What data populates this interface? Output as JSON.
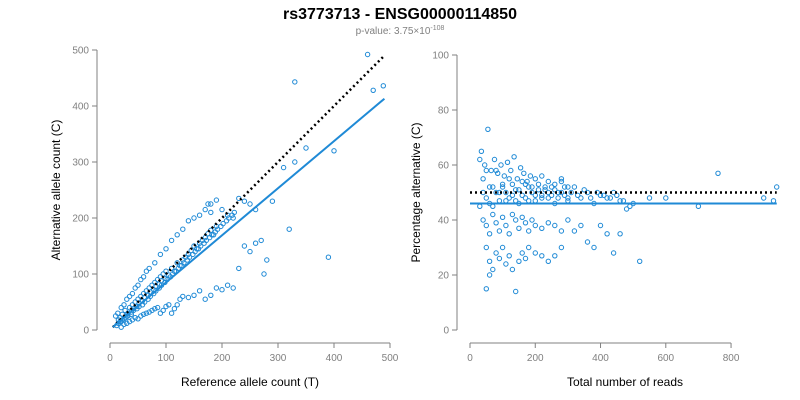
{
  "title": "rs3773713 - ENSG00000114850",
  "subtitle": {
    "prefix": "p-value: 3.75×10",
    "exponent": "-108"
  },
  "colors": {
    "points": "#1f8ad6",
    "fit_line": "#1f8ad6",
    "reference_line": "#000000",
    "axis": "#808080"
  },
  "chart_data": [
    {
      "type": "scatter",
      "xlabel": "Reference allele count (T)",
      "ylabel": "Alternative allele count (C)",
      "xlim": [
        0,
        500
      ],
      "ylim": [
        0,
        500
      ],
      "xticks": [
        0,
        100,
        200,
        300,
        400,
        500
      ],
      "yticks": [
        0,
        100,
        200,
        300,
        400,
        500
      ],
      "regression_line": [
        [
          5,
          5
        ],
        [
          490,
          413
        ]
      ],
      "reference_line": [
        [
          5,
          5
        ],
        [
          490,
          490
        ]
      ],
      "points": [
        [
          12,
          8
        ],
        [
          15,
          18
        ],
        [
          18,
          22
        ],
        [
          20,
          15
        ],
        [
          22,
          28
        ],
        [
          25,
          20
        ],
        [
          27,
          35
        ],
        [
          30,
          25
        ],
        [
          32,
          30
        ],
        [
          35,
          40
        ],
        [
          38,
          32
        ],
        [
          40,
          45
        ],
        [
          42,
          38
        ],
        [
          45,
          50
        ],
        [
          48,
          42
        ],
        [
          50,
          55
        ],
        [
          52,
          48
        ],
        [
          55,
          60
        ],
        [
          58,
          52
        ],
        [
          60,
          65
        ],
        [
          62,
          58
        ],
        [
          65,
          70
        ],
        [
          68,
          62
        ],
        [
          70,
          75
        ],
        [
          72,
          68
        ],
        [
          75,
          80
        ],
        [
          78,
          72
        ],
        [
          80,
          85
        ],
        [
          82,
          78
        ],
        [
          85,
          90
        ],
        [
          88,
          82
        ],
        [
          90,
          95
        ],
        [
          92,
          88
        ],
        [
          95,
          100
        ],
        [
          98,
          92
        ],
        [
          100,
          105
        ],
        [
          105,
          98
        ],
        [
          110,
          110
        ],
        [
          115,
          105
        ],
        [
          120,
          120
        ],
        [
          125,
          115
        ],
        [
          130,
          125
        ],
        [
          135,
          130
        ],
        [
          140,
          135
        ],
        [
          145,
          142
        ],
        [
          150,
          150
        ],
        [
          155,
          145
        ],
        [
          160,
          155
        ],
        [
          165,
          160
        ],
        [
          170,
          165
        ],
        [
          175,
          172
        ],
        [
          180,
          178
        ],
        [
          185,
          170
        ],
        [
          190,
          185
        ],
        [
          10,
          25
        ],
        [
          14,
          30
        ],
        [
          20,
          40
        ],
        [
          25,
          45
        ],
        [
          30,
          55
        ],
        [
          35,
          60
        ],
        [
          40,
          65
        ],
        [
          45,
          75
        ],
        [
          50,
          80
        ],
        [
          55,
          90
        ],
        [
          60,
          95
        ],
        [
          65,
          105
        ],
        [
          70,
          110
        ],
        [
          80,
          120
        ],
        [
          90,
          135
        ],
        [
          100,
          145
        ],
        [
          110,
          160
        ],
        [
          120,
          170
        ],
        [
          130,
          180
        ],
        [
          140,
          195
        ],
        [
          150,
          200
        ],
        [
          160,
          205
        ],
        [
          170,
          215
        ],
        [
          180,
          225
        ],
        [
          190,
          232
        ],
        [
          200,
          215
        ],
        [
          210,
          205
        ],
        [
          220,
          200
        ],
        [
          230,
          235
        ],
        [
          240,
          230
        ],
        [
          250,
          225
        ],
        [
          260,
          215
        ],
        [
          175,
          225
        ],
        [
          180,
          210
        ],
        [
          20,
          5
        ],
        [
          25,
          10
        ],
        [
          30,
          12
        ],
        [
          35,
          15
        ],
        [
          40,
          18
        ],
        [
          45,
          22
        ],
        [
          50,
          20
        ],
        [
          55,
          25
        ],
        [
          60,
          28
        ],
        [
          65,
          30
        ],
        [
          70,
          32
        ],
        [
          75,
          35
        ],
        [
          80,
          38
        ],
        [
          85,
          40
        ],
        [
          90,
          30
        ],
        [
          95,
          35
        ],
        [
          100,
          42
        ],
        [
          105,
          45
        ],
        [
          110,
          30
        ],
        [
          115,
          38
        ],
        [
          120,
          45
        ],
        [
          125,
          55
        ],
        [
          130,
          60
        ],
        [
          140,
          58
        ],
        [
          150,
          62
        ],
        [
          160,
          70
        ],
        [
          170,
          55
        ],
        [
          180,
          62
        ],
        [
          190,
          75
        ],
        [
          200,
          72
        ],
        [
          210,
          80
        ],
        [
          220,
          75
        ],
        [
          230,
          110
        ],
        [
          240,
          150
        ],
        [
          250,
          140
        ],
        [
          260,
          155
        ],
        [
          270,
          160
        ],
        [
          275,
          100
        ],
        [
          280,
          125
        ],
        [
          290,
          230
        ],
        [
          310,
          290
        ],
        [
          320,
          180
        ],
        [
          330,
          300
        ],
        [
          350,
          325
        ],
        [
          390,
          130
        ],
        [
          400,
          320
        ],
        [
          330,
          443
        ],
        [
          460,
          492
        ],
        [
          470,
          428
        ],
        [
          488,
          436
        ],
        [
          15,
          12
        ],
        [
          18,
          15
        ],
        [
          22,
          18
        ],
        [
          28,
          22
        ],
        [
          32,
          25
        ],
        [
          38,
          28
        ],
        [
          42,
          35
        ],
        [
          48,
          38
        ],
        [
          52,
          42
        ],
        [
          58,
          45
        ],
        [
          62,
          50
        ],
        [
          68,
          55
        ],
        [
          72,
          60
        ],
        [
          78,
          65
        ],
        [
          82,
          70
        ],
        [
          88,
          75
        ],
        [
          92,
          80
        ],
        [
          98,
          85
        ],
        [
          102,
          90
        ],
        [
          108,
          95
        ],
        [
          112,
          100
        ],
        [
          118,
          105
        ],
        [
          122,
          110
        ],
        [
          128,
          115
        ],
        [
          132,
          120
        ],
        [
          138,
          125
        ],
        [
          142,
          130
        ],
        [
          148,
          135
        ],
        [
          152,
          140
        ],
        [
          158,
          145
        ],
        [
          162,
          150
        ],
        [
          168,
          155
        ],
        [
          172,
          160
        ],
        [
          178,
          165
        ],
        [
          182,
          170
        ],
        [
          188,
          175
        ],
        [
          192,
          180
        ],
        [
          198,
          185
        ],
        [
          202,
          190
        ],
        [
          208,
          195
        ],
        [
          212,
          200
        ],
        [
          218,
          205
        ],
        [
          222,
          210
        ]
      ]
    },
    {
      "type": "scatter",
      "xlabel": "Total number of reads",
      "ylabel": "Percentage alternative (C)",
      "xlim": [
        0,
        950
      ],
      "ylim": [
        0,
        100
      ],
      "xticks": [
        0,
        200,
        400,
        600,
        800
      ],
      "yticks": [
        0,
        20,
        40,
        60,
        80,
        100
      ],
      "regression_line": [
        [
          0,
          46
        ],
        [
          940,
          46
        ]
      ],
      "reference_line": [
        [
          0,
          50
        ],
        [
          940,
          50
        ]
      ],
      "points": [
        [
          30,
          62
        ],
        [
          40,
          55
        ],
        [
          50,
          48
        ],
        [
          60,
          52
        ],
        [
          70,
          45
        ],
        [
          80,
          58
        ],
        [
          90,
          50
        ],
        [
          100,
          53
        ],
        [
          110,
          47
        ],
        [
          120,
          55
        ],
        [
          130,
          49
        ],
        [
          140,
          51
        ],
        [
          150,
          46
        ],
        [
          160,
          54
        ],
        [
          170,
          48
        ],
        [
          180,
          52
        ],
        [
          190,
          50
        ],
        [
          200,
          47
        ],
        [
          210,
          53
        ],
        [
          220,
          49
        ],
        [
          230,
          51
        ],
        [
          240,
          48
        ],
        [
          250,
          52
        ],
        [
          260,
          46
        ],
        [
          270,
          50
        ],
        [
          280,
          54
        ],
        [
          290,
          49
        ],
        [
          300,
          47
        ],
        [
          320,
          52
        ],
        [
          340,
          48
        ],
        [
          360,
          50
        ],
        [
          380,
          46
        ],
        [
          400,
          49
        ],
        [
          420,
          48
        ],
        [
          440,
          50
        ],
        [
          460,
          47
        ],
        [
          480,
          44
        ],
        [
          500,
          46
        ],
        [
          520,
          25
        ],
        [
          550,
          48
        ],
        [
          600,
          48
        ],
        [
          700,
          45
        ],
        [
          760,
          57
        ],
        [
          900,
          48
        ],
        [
          930,
          47
        ],
        [
          940,
          52
        ],
        [
          35,
          65
        ],
        [
          45,
          60
        ],
        [
          55,
          73
        ],
        [
          65,
          58
        ],
        [
          75,
          62
        ],
        [
          85,
          57
        ],
        [
          95,
          60
        ],
        [
          105,
          56
        ],
        [
          115,
          61
        ],
        [
          125,
          58
        ],
        [
          135,
          63
        ],
        [
          145,
          55
        ],
        [
          155,
          59
        ],
        [
          165,
          57
        ],
        [
          175,
          54
        ],
        [
          185,
          56
        ],
        [
          200,
          55
        ],
        [
          220,
          56
        ],
        [
          240,
          54
        ],
        [
          260,
          53
        ],
        [
          280,
          55
        ],
        [
          300,
          52
        ],
        [
          40,
          40
        ],
        [
          50,
          38
        ],
        [
          60,
          35
        ],
        [
          70,
          42
        ],
        [
          80,
          39
        ],
        [
          90,
          36
        ],
        [
          100,
          41
        ],
        [
          110,
          38
        ],
        [
          120,
          35
        ],
        [
          130,
          42
        ],
        [
          140,
          40
        ],
        [
          150,
          37
        ],
        [
          160,
          41
        ],
        [
          170,
          39
        ],
        [
          180,
          36
        ],
        [
          190,
          40
        ],
        [
          200,
          38
        ],
        [
          220,
          37
        ],
        [
          240,
          39
        ],
        [
          260,
          38
        ],
        [
          280,
          36
        ],
        [
          300,
          40
        ],
        [
          320,
          36
        ],
        [
          340,
          38
        ],
        [
          360,
          32
        ],
        [
          380,
          30
        ],
        [
          400,
          38
        ],
        [
          420,
          35
        ],
        [
          440,
          28
        ],
        [
          460,
          35
        ],
        [
          50,
          30
        ],
        [
          60,
          25
        ],
        [
          70,
          22
        ],
        [
          80,
          28
        ],
        [
          90,
          26
        ],
        [
          100,
          30
        ],
        [
          110,
          24
        ],
        [
          120,
          27
        ],
        [
          130,
          22
        ],
        [
          140,
          14
        ],
        [
          150,
          25
        ],
        [
          160,
          28
        ],
        [
          170,
          26
        ],
        [
          180,
          30
        ],
        [
          200,
          28
        ],
        [
          220,
          27
        ],
        [
          240,
          25
        ],
        [
          260,
          27
        ],
        [
          280,
          30
        ],
        [
          50,
          15
        ],
        [
          60,
          20
        ],
        [
          30,
          45
        ],
        [
          40,
          50
        ],
        [
          50,
          58
        ],
        [
          60,
          46
        ],
        [
          70,
          52
        ],
        [
          80,
          50
        ],
        [
          90,
          47
        ],
        [
          100,
          52
        ],
        [
          110,
          50
        ],
        [
          120,
          48
        ],
        [
          130,
          53
        ],
        [
          140,
          47
        ],
        [
          150,
          51
        ],
        [
          160,
          49
        ],
        [
          170,
          53
        ],
        [
          180,
          47
        ],
        [
          190,
          52
        ],
        [
          200,
          49
        ],
        [
          210,
          51
        ],
        [
          220,
          48
        ],
        [
          230,
          52
        ],
        [
          240,
          50
        ],
        [
          250,
          49
        ],
        [
          260,
          51
        ],
        [
          270,
          48
        ],
        [
          280,
          50
        ],
        [
          290,
          52
        ],
        [
          300,
          48
        ],
        [
          310,
          50
        ],
        [
          330,
          49
        ],
        [
          350,
          51
        ],
        [
          370,
          48
        ],
        [
          390,
          50
        ],
        [
          410,
          49
        ],
        [
          430,
          48
        ],
        [
          450,
          49
        ],
        [
          470,
          47
        ],
        [
          490,
          45
        ]
      ]
    }
  ]
}
